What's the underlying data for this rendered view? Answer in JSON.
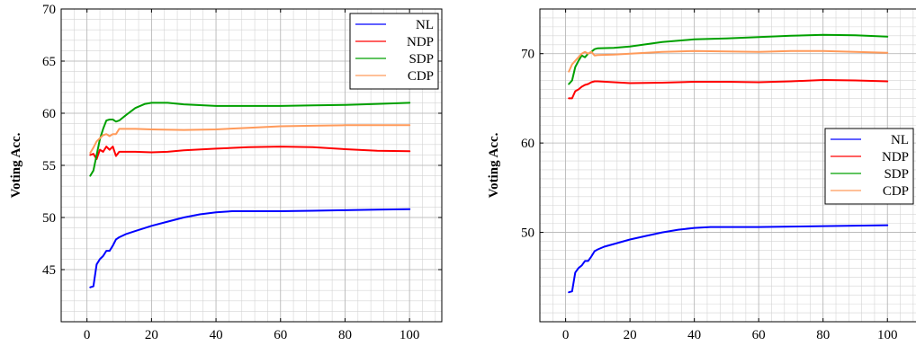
{
  "chart_data": [
    {
      "type": "line",
      "title": "",
      "xlabel": "",
      "ylabel": "Voting Acc.",
      "xlim": [
        -8,
        110
      ],
      "ylim": [
        40,
        70
      ],
      "xticks": [
        0,
        20,
        40,
        60,
        80,
        100
      ],
      "yticks": [
        45,
        50,
        55,
        60,
        65,
        70
      ],
      "grid": true,
      "legend_position": "top-right",
      "series": [
        {
          "name": "NL",
          "color": "#0000ff",
          "points": [
            [
              1,
              43.3
            ],
            [
              2,
              43.4
            ],
            [
              3,
              45.5
            ],
            [
              4,
              46
            ],
            [
              5,
              46.3
            ],
            [
              6,
              46.8
            ],
            [
              7,
              46.8
            ],
            [
              8,
              47.3
            ],
            [
              9,
              47.9
            ],
            [
              10,
              48.1
            ],
            [
              12,
              48.4
            ],
            [
              15,
              48.7
            ],
            [
              20,
              49.2
            ],
            [
              25,
              49.6
            ],
            [
              30,
              50
            ],
            [
              35,
              50.3
            ],
            [
              40,
              50.5
            ],
            [
              45,
              50.6
            ],
            [
              50,
              50.6
            ],
            [
              55,
              50.6
            ],
            [
              60,
              50.6
            ],
            [
              70,
              50.65
            ],
            [
              80,
              50.7
            ],
            [
              90,
              50.75
            ],
            [
              100,
              50.8
            ]
          ]
        },
        {
          "name": "NDP",
          "color": "#ff0000",
          "points": [
            [
              1,
              56
            ],
            [
              2,
              56.1
            ],
            [
              3,
              55.6
            ],
            [
              4,
              56.5
            ],
            [
              5,
              56.3
            ],
            [
              6,
              56.8
            ],
            [
              7,
              56.5
            ],
            [
              8,
              56.8
            ],
            [
              9,
              55.9
            ],
            [
              10,
              56.3
            ],
            [
              15,
              56.3
            ],
            [
              20,
              56.25
            ],
            [
              25,
              56.3
            ],
            [
              30,
              56.45
            ],
            [
              40,
              56.6
            ],
            [
              50,
              56.75
            ],
            [
              60,
              56.8
            ],
            [
              70,
              56.75
            ],
            [
              80,
              56.55
            ],
            [
              90,
              56.4
            ],
            [
              100,
              56.35
            ]
          ]
        },
        {
          "name": "SDP",
          "color": "#00a000",
          "points": [
            [
              1,
              54
            ],
            [
              2,
              54.5
            ],
            [
              3,
              56
            ],
            [
              4,
              57.5
            ],
            [
              5,
              58.5
            ],
            [
              6,
              59.3
            ],
            [
              7,
              59.4
            ],
            [
              8,
              59.4
            ],
            [
              9,
              59.2
            ],
            [
              10,
              59.3
            ],
            [
              12,
              59.8
            ],
            [
              15,
              60.5
            ],
            [
              18,
              60.9
            ],
            [
              20,
              61
            ],
            [
              25,
              61
            ],
            [
              30,
              60.85
            ],
            [
              40,
              60.7
            ],
            [
              50,
              60.7
            ],
            [
              60,
              60.7
            ],
            [
              70,
              60.75
            ],
            [
              80,
              60.8
            ],
            [
              90,
              60.9
            ],
            [
              100,
              61
            ]
          ]
        },
        {
          "name": "CDP",
          "color": "#ff9a5a",
          "points": [
            [
              1,
              56.2
            ],
            [
              2,
              56.7
            ],
            [
              3,
              57.3
            ],
            [
              4,
              57.6
            ],
            [
              5,
              57.9
            ],
            [
              6,
              58
            ],
            [
              7,
              57.8
            ],
            [
              8,
              58
            ],
            [
              9,
              58
            ],
            [
              10,
              58.5
            ],
            [
              15,
              58.5
            ],
            [
              20,
              58.45
            ],
            [
              30,
              58.4
            ],
            [
              40,
              58.45
            ],
            [
              50,
              58.6
            ],
            [
              60,
              58.75
            ],
            [
              70,
              58.8
            ],
            [
              80,
              58.85
            ],
            [
              90,
              58.85
            ],
            [
              100,
              58.85
            ]
          ]
        }
      ]
    },
    {
      "type": "line",
      "title": "",
      "xlabel": "",
      "ylabel": "Voting Acc.",
      "xlim": [
        -8,
        110
      ],
      "ylim": [
        40,
        75
      ],
      "xticks": [
        0,
        20,
        40,
        60,
        80,
        100
      ],
      "yticks": [
        50,
        60,
        70
      ],
      "grid": true,
      "legend_position": "center-right",
      "series": [
        {
          "name": "NL",
          "color": "#0000ff",
          "points": [
            [
              1,
              43.3
            ],
            [
              2,
              43.4
            ],
            [
              3,
              45.5
            ],
            [
              4,
              46
            ],
            [
              5,
              46.3
            ],
            [
              6,
              46.8
            ],
            [
              7,
              46.8
            ],
            [
              8,
              47.3
            ],
            [
              9,
              47.9
            ],
            [
              10,
              48.1
            ],
            [
              12,
              48.4
            ],
            [
              15,
              48.7
            ],
            [
              20,
              49.2
            ],
            [
              25,
              49.6
            ],
            [
              30,
              50
            ],
            [
              35,
              50.3
            ],
            [
              40,
              50.5
            ],
            [
              45,
              50.6
            ],
            [
              50,
              50.6
            ],
            [
              55,
              50.6
            ],
            [
              60,
              50.6
            ],
            [
              70,
              50.65
            ],
            [
              80,
              50.7
            ],
            [
              90,
              50.75
            ],
            [
              100,
              50.8
            ]
          ]
        },
        {
          "name": "NDP",
          "color": "#ff0000",
          "points": [
            [
              1,
              65
            ],
            [
              2,
              65
            ],
            [
              3,
              65.8
            ],
            [
              4,
              66
            ],
            [
              5,
              66.3
            ],
            [
              6,
              66.5
            ],
            [
              7,
              66.6
            ],
            [
              8,
              66.8
            ],
            [
              9,
              66.9
            ],
            [
              10,
              66.9
            ],
            [
              15,
              66.8
            ],
            [
              20,
              66.7
            ],
            [
              30,
              66.75
            ],
            [
              40,
              66.85
            ],
            [
              50,
              66.85
            ],
            [
              60,
              66.8
            ],
            [
              70,
              66.9
            ],
            [
              80,
              67.05
            ],
            [
              90,
              67
            ],
            [
              100,
              66.9
            ]
          ]
        },
        {
          "name": "SDP",
          "color": "#00a000",
          "points": [
            [
              1,
              66.6
            ],
            [
              2,
              67
            ],
            [
              3,
              68.5
            ],
            [
              4,
              69.2
            ],
            [
              5,
              69.8
            ],
            [
              6,
              69.6
            ],
            [
              7,
              70
            ],
            [
              8,
              70.2
            ],
            [
              9,
              70.5
            ],
            [
              10,
              70.6
            ],
            [
              15,
              70.65
            ],
            [
              20,
              70.8
            ],
            [
              30,
              71.3
            ],
            [
              40,
              71.6
            ],
            [
              50,
              71.7
            ],
            [
              60,
              71.85
            ],
            [
              70,
              72
            ],
            [
              80,
              72.1
            ],
            [
              90,
              72.05
            ],
            [
              100,
              71.9
            ]
          ]
        },
        {
          "name": "CDP",
          "color": "#ff9a5a",
          "points": [
            [
              1,
              68
            ],
            [
              2,
              68.8
            ],
            [
              3,
              69.2
            ],
            [
              4,
              69.6
            ],
            [
              5,
              70
            ],
            [
              6,
              70.2
            ],
            [
              7,
              70
            ],
            [
              8,
              70.2
            ],
            [
              9,
              69.8
            ],
            [
              10,
              69.85
            ],
            [
              15,
              69.9
            ],
            [
              20,
              70
            ],
            [
              30,
              70.2
            ],
            [
              40,
              70.3
            ],
            [
              50,
              70.25
            ],
            [
              60,
              70.2
            ],
            [
              70,
              70.3
            ],
            [
              80,
              70.3
            ],
            [
              90,
              70.2
            ],
            [
              100,
              70.1
            ]
          ]
        }
      ]
    }
  ]
}
